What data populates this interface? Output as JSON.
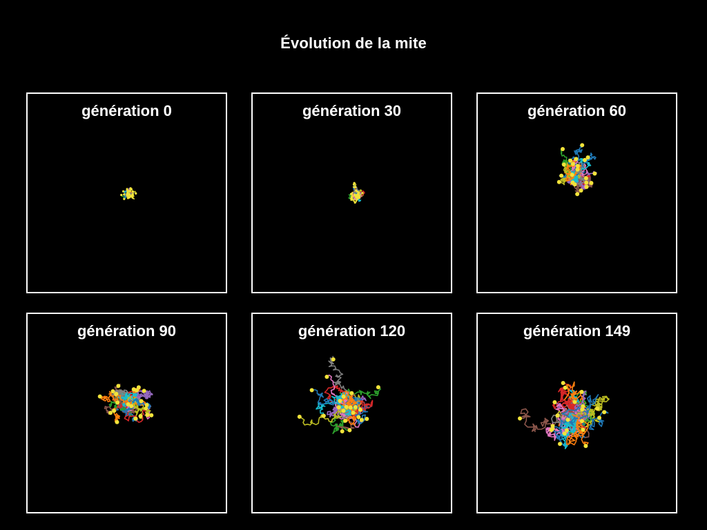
{
  "title": "Évolution de la mite",
  "panels": [
    {
      "label": "génération 0",
      "generation": 0,
      "spread": 0.1
    },
    {
      "label": "génération 30",
      "generation": 30,
      "spread": 0.16
    },
    {
      "label": "génération 60",
      "generation": 60,
      "spread": 0.9
    },
    {
      "label": "génération 90",
      "generation": 90,
      "spread": 1.05
    },
    {
      "label": "génération 120",
      "generation": 120,
      "spread": 1.3
    },
    {
      "label": "génération 149",
      "generation": 149,
      "spread": 1.8
    }
  ],
  "colors": {
    "background": "#000000",
    "frame": "#ffffff",
    "endpoint": "#f2e33a",
    "trail_palette": [
      "#1f77b4",
      "#ff7f0e",
      "#2ca02c",
      "#d62728",
      "#9467bd",
      "#8c564b",
      "#e377c2",
      "#7f7f7f",
      "#bcbd22",
      "#17becf"
    ]
  }
}
